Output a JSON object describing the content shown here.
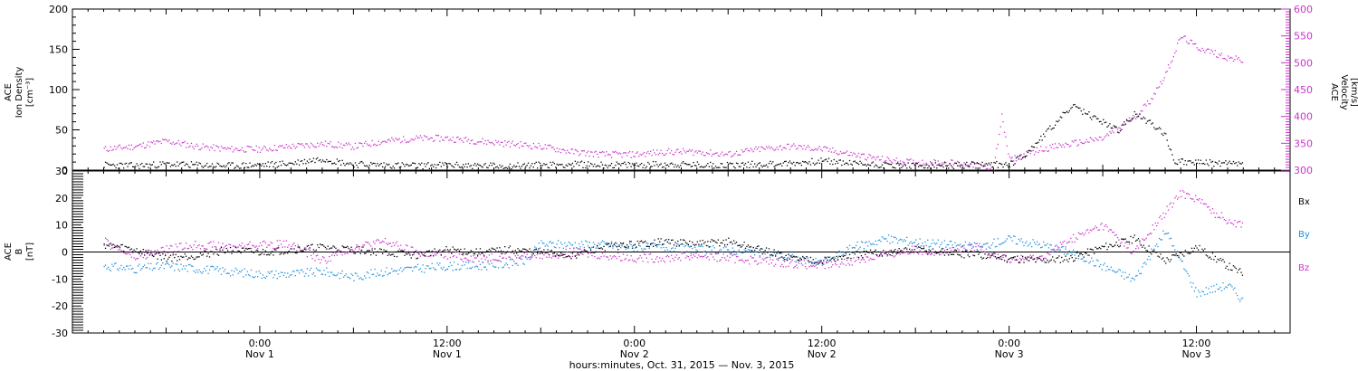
{
  "chart_data": [
    {
      "type": "scatter",
      "panel": "top",
      "left_axis_label": [
        "ACE",
        "Ion Density",
        "[cm⁻³]"
      ],
      "right_axis_label": [
        "ACE",
        "Velocity",
        "[km/s]"
      ],
      "ylim_left": [
        0,
        200
      ],
      "ylim_right": [
        300,
        600
      ],
      "yticks_left": [
        0,
        50,
        100,
        150,
        200
      ],
      "yticks_right": [
        300,
        350,
        400,
        450,
        500,
        550,
        600
      ],
      "series": [
        {
          "name": "Ion Density",
          "axis": "left",
          "color": "#000000",
          "points_hours": [
            [
              -10,
              7
            ],
            [
              -8,
              6
            ],
            [
              -6,
              8
            ],
            [
              -4,
              7
            ],
            [
              -2,
              6
            ],
            [
              0,
              7
            ],
            [
              1,
              8
            ],
            [
              2,
              9
            ],
            [
              3,
              12
            ],
            [
              4,
              15
            ],
            [
              5,
              11
            ],
            [
              6,
              8
            ],
            [
              8,
              7
            ],
            [
              10,
              6
            ],
            [
              12,
              7
            ],
            [
              14,
              6
            ],
            [
              16,
              6
            ],
            [
              18,
              7
            ],
            [
              20,
              8
            ],
            [
              22,
              7
            ],
            [
              24,
              7
            ],
            [
              26,
              8
            ],
            [
              28,
              7
            ],
            [
              30,
              7
            ],
            [
              32,
              8
            ],
            [
              34,
              9
            ],
            [
              36,
              12
            ],
            [
              38,
              9
            ],
            [
              40,
              7
            ],
            [
              42,
              6
            ],
            [
              44,
              6
            ],
            [
              46,
              7
            ],
            [
              48,
              8
            ],
            [
              49,
              20
            ],
            [
              50,
              40
            ],
            [
              51,
              60
            ],
            [
              52,
              80
            ],
            [
              53,
              70
            ],
            [
              54,
              60
            ],
            [
              55,
              50
            ],
            [
              56,
              70
            ],
            [
              57,
              60
            ],
            [
              58,
              45
            ],
            [
              58.5,
              12
            ],
            [
              60,
              10
            ],
            [
              62,
              9
            ],
            [
              63,
              8
            ]
          ]
        },
        {
          "name": "Velocity",
          "axis": "right",
          "color": "#cc33cc",
          "points_hours": [
            [
              -10,
              340
            ],
            [
              -8,
              345
            ],
            [
              -6,
              355
            ],
            [
              -4,
              345
            ],
            [
              -2,
              340
            ],
            [
              0,
              340
            ],
            [
              2,
              345
            ],
            [
              4,
              350
            ],
            [
              6,
              345
            ],
            [
              8,
              355
            ],
            [
              10,
              360
            ],
            [
              12,
              360
            ],
            [
              14,
              355
            ],
            [
              16,
              350
            ],
            [
              18,
              345
            ],
            [
              20,
              335
            ],
            [
              22,
              330
            ],
            [
              24,
              330
            ],
            [
              26,
              335
            ],
            [
              28,
              335
            ],
            [
              30,
              330
            ],
            [
              32,
              340
            ],
            [
              34,
              345
            ],
            [
              36,
              340
            ],
            [
              38,
              330
            ],
            [
              40,
              320
            ],
            [
              42,
              315
            ],
            [
              44,
              315
            ],
            [
              46,
              310
            ],
            [
              47,
              305
            ],
            [
              47.5,
              400
            ],
            [
              48,
              320
            ],
            [
              49,
              330
            ],
            [
              50,
              340
            ],
            [
              52,
              350
            ],
            [
              54,
              360
            ],
            [
              55,
              380
            ],
            [
              56,
              400
            ],
            [
              57,
              430
            ],
            [
              58,
              480
            ],
            [
              59,
              550
            ],
            [
              60,
              530
            ],
            [
              61,
              520
            ],
            [
              62,
              510
            ],
            [
              63,
              505
            ]
          ]
        }
      ]
    },
    {
      "type": "scatter",
      "panel": "bottom",
      "left_axis_label": [
        "ACE",
        "B",
        "[nT]"
      ],
      "ylim": [
        -30,
        30
      ],
      "yticks": [
        -30,
        -20,
        -10,
        0,
        10,
        20,
        30
      ],
      "legend": [
        "Bx",
        "By",
        "Bz"
      ],
      "series": [
        {
          "name": "Bx",
          "color": "#000000",
          "points_hours": [
            [
              -10,
              3
            ],
            [
              -8,
              1
            ],
            [
              -6,
              -2
            ],
            [
              -4,
              -1
            ],
            [
              -2,
              1
            ],
            [
              0,
              0
            ],
            [
              2,
              1
            ],
            [
              4,
              2
            ],
            [
              6,
              1
            ],
            [
              8,
              0
            ],
            [
              10,
              -1
            ],
            [
              12,
              1
            ],
            [
              14,
              0
            ],
            [
              16,
              1
            ],
            [
              18,
              0
            ],
            [
              20,
              -1
            ],
            [
              22,
              2
            ],
            [
              24,
              3
            ],
            [
              26,
              4
            ],
            [
              28,
              3
            ],
            [
              30,
              4
            ],
            [
              32,
              1
            ],
            [
              34,
              -2
            ],
            [
              36,
              -3
            ],
            [
              38,
              -1
            ],
            [
              40,
              0
            ],
            [
              42,
              1
            ],
            [
              44,
              0
            ],
            [
              46,
              -1
            ],
            [
              48,
              -2
            ],
            [
              50,
              -3
            ],
            [
              52,
              -2
            ],
            [
              54,
              2
            ],
            [
              56,
              5
            ],
            [
              58,
              -3
            ],
            [
              60,
              2
            ],
            [
              62,
              -5
            ],
            [
              63,
              -8
            ]
          ]
        },
        {
          "name": "By",
          "color": "#1e90dc",
          "points_hours": [
            [
              -10,
              -5
            ],
            [
              -8,
              -6
            ],
            [
              -6,
              -5
            ],
            [
              -4,
              -6
            ],
            [
              -2,
              -7
            ],
            [
              0,
              -8
            ],
            [
              2,
              -8
            ],
            [
              4,
              -7
            ],
            [
              6,
              -9
            ],
            [
              8,
              -7
            ],
            [
              10,
              -6
            ],
            [
              12,
              -5
            ],
            [
              14,
              -5
            ],
            [
              16,
              -4
            ],
            [
              17,
              -3
            ],
            [
              18,
              3
            ],
            [
              20,
              3
            ],
            [
              22,
              3
            ],
            [
              24,
              2
            ],
            [
              26,
              2
            ],
            [
              28,
              1
            ],
            [
              30,
              1
            ],
            [
              32,
              0
            ],
            [
              34,
              -2
            ],
            [
              36,
              -4
            ],
            [
              38,
              2
            ],
            [
              40,
              5
            ],
            [
              42,
              4
            ],
            [
              44,
              3
            ],
            [
              46,
              2
            ],
            [
              48,
              5
            ],
            [
              50,
              3
            ],
            [
              52,
              0
            ],
            [
              54,
              -5
            ],
            [
              56,
              -10
            ],
            [
              58,
              8
            ],
            [
              60,
              -15
            ],
            [
              62,
              -12
            ],
            [
              63,
              -18
            ]
          ]
        },
        {
          "name": "Bz",
          "color": "#cc33cc",
          "points_hours": [
            [
              -10,
              4
            ],
            [
              -8,
              -2
            ],
            [
              -6,
              1
            ],
            [
              -4,
              3
            ],
            [
              -2,
              2
            ],
            [
              0,
              3
            ],
            [
              2,
              3
            ],
            [
              4,
              -3
            ],
            [
              6,
              2
            ],
            [
              8,
              4
            ],
            [
              10,
              0
            ],
            [
              12,
              -1
            ],
            [
              14,
              -2
            ],
            [
              16,
              -1
            ],
            [
              18,
              -1
            ],
            [
              20,
              0
            ],
            [
              22,
              -1
            ],
            [
              24,
              -2
            ],
            [
              26,
              -2
            ],
            [
              28,
              -1
            ],
            [
              30,
              -2
            ],
            [
              32,
              -3
            ],
            [
              34,
              -4
            ],
            [
              36,
              -5
            ],
            [
              38,
              -3
            ],
            [
              40,
              -1
            ],
            [
              42,
              1
            ],
            [
              44,
              0
            ],
            [
              46,
              2
            ],
            [
              48,
              -3
            ],
            [
              50,
              -2
            ],
            [
              52,
              5
            ],
            [
              54,
              10
            ],
            [
              56,
              0
            ],
            [
              58,
              15
            ],
            [
              59,
              22
            ],
            [
              60,
              20
            ],
            [
              61,
              15
            ],
            [
              62,
              12
            ],
            [
              63,
              10
            ]
          ]
        }
      ]
    }
  ],
  "x_axis": {
    "range_hours": [
      -12,
      66
    ],
    "ticks": [
      {
        "time": "0:00",
        "day": "Nov 1"
      },
      {
        "time": "12:00",
        "day": "Nov 1"
      },
      {
        "time": "0:00",
        "day": "Nov 2"
      },
      {
        "time": "12:00",
        "day": "Nov 2"
      },
      {
        "time": "0:00",
        "day": "Nov 3"
      },
      {
        "time": "12:00",
        "day": "Nov 3"
      }
    ],
    "tick_hours": [
      0,
      12,
      24,
      36,
      48,
      60
    ],
    "title": "hours:minutes, Oct. 31, 2015 — Nov.  3, 2015"
  },
  "colors": {
    "density": "#000000",
    "velocity": "#cc33cc",
    "bx": "#000000",
    "by": "#1e90dc",
    "bz": "#cc33cc"
  }
}
